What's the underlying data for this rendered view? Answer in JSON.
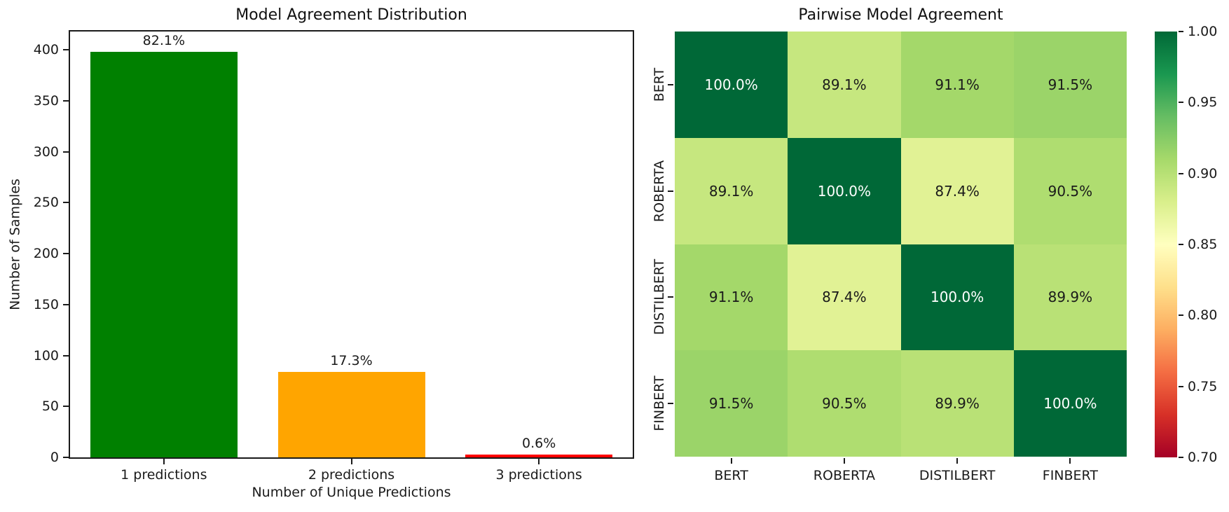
{
  "figure": {
    "background": "#ffffff",
    "text_color": "#1a1a1a"
  },
  "chart_data": [
    {
      "type": "bar",
      "title": "Model Agreement Distribution",
      "xlabel": "Number of Unique Predictions",
      "ylabel": "Number of Samples",
      "categories": [
        "1 predictions",
        "2 predictions",
        "3 predictions"
      ],
      "values": [
        398,
        84,
        3
      ],
      "value_labels": [
        "82.1%",
        "17.3%",
        "0.6%"
      ],
      "bar_colors": [
        "#008000",
        "#ffa500",
        "#ff0000"
      ],
      "yticks": [
        0,
        50,
        100,
        150,
        200,
        250,
        300,
        350,
        400
      ],
      "ylim": [
        0,
        418
      ],
      "grid": false,
      "legend": null
    },
    {
      "type": "heatmap",
      "title": "Pairwise Model Agreement",
      "x_labels": [
        "BERT",
        "ROBERTA",
        "DISTILBERT",
        "FINBERT"
      ],
      "y_labels": [
        "BERT",
        "ROBERTA",
        "DISTILBERT",
        "FINBERT"
      ],
      "values": [
        [
          1.0,
          0.891,
          0.911,
          0.915
        ],
        [
          0.891,
          1.0,
          0.874,
          0.905
        ],
        [
          0.911,
          0.874,
          1.0,
          0.899
        ],
        [
          0.915,
          0.905,
          0.899,
          1.0
        ]
      ],
      "cell_labels": [
        [
          "100.0%",
          "89.1%",
          "91.1%",
          "91.5%"
        ],
        [
          "89.1%",
          "100.0%",
          "87.4%",
          "90.5%"
        ],
        [
          "91.1%",
          "87.4%",
          "100.0%",
          "89.9%"
        ],
        [
          "91.5%",
          "90.5%",
          "89.9%",
          "100.0%"
        ]
      ],
      "cell_colors": [
        [
          "#006837",
          "#c6e77f",
          "#a4d86a",
          "#9bd469"
        ],
        [
          "#c6e77f",
          "#006837",
          "#e1f295",
          "#afdd70"
        ],
        [
          "#a4d86a",
          "#e1f295",
          "#006837",
          "#b9e176"
        ],
        [
          "#9bd469",
          "#afdd70",
          "#b9e176",
          "#006837"
        ]
      ],
      "cell_text_colors": [
        [
          "#ffffff",
          "#1a1a1a",
          "#1a1a1a",
          "#1a1a1a"
        ],
        [
          "#1a1a1a",
          "#ffffff",
          "#1a1a1a",
          "#1a1a1a"
        ],
        [
          "#1a1a1a",
          "#1a1a1a",
          "#ffffff",
          "#1a1a1a"
        ],
        [
          "#1a1a1a",
          "#1a1a1a",
          "#1a1a1a",
          "#ffffff"
        ]
      ],
      "colormap": "RdYlGn",
      "vmin": 0.7,
      "vmax": 1.0,
      "colorbar_ticks": [
        "1.00",
        "0.95",
        "0.90",
        "0.85",
        "0.80",
        "0.75",
        "0.70"
      ],
      "colorbar_gradient": [
        "#a50026",
        "#d73027",
        "#f46d43",
        "#fdae61",
        "#fee08b",
        "#ffffbf",
        "#d9ef8b",
        "#a6d96a",
        "#66bd63",
        "#1a9850",
        "#006837"
      ]
    }
  ]
}
